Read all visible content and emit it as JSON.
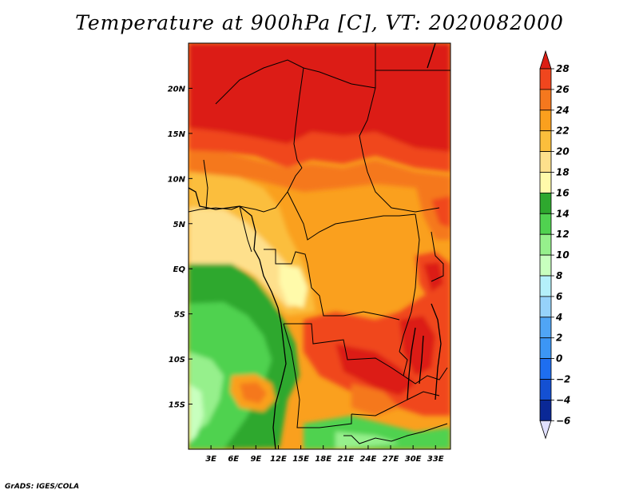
{
  "title": "Temperature at 900hPa [C], VT: 2020082000",
  "credit": "GrADS: IGES/COLA",
  "map": {
    "lon_range": [
      0,
      35
    ],
    "lat_range": [
      -20,
      25
    ],
    "x_ticks": [
      "3E",
      "6E",
      "9E",
      "12E",
      "15E",
      "18E",
      "21E",
      "24E",
      "27E",
      "30E",
      "33E"
    ],
    "y_ticks": [
      "20N",
      "15N",
      "10N",
      "5N",
      "EQ",
      "5S",
      "10S",
      "15S"
    ],
    "x_tick_values": [
      3,
      6,
      9,
      12,
      15,
      18,
      21,
      24,
      27,
      30,
      33
    ],
    "y_tick_values": [
      20,
      15,
      10,
      5,
      0,
      -5,
      -10,
      -15
    ]
  },
  "colorbar": {
    "labels": [
      "28",
      "26",
      "24",
      "22",
      "20",
      "18",
      "16",
      "14",
      "12",
      "10",
      "8",
      "6",
      "4",
      "2",
      "0",
      "−2",
      "−4",
      "−6"
    ],
    "levels": [
      28,
      26,
      24,
      22,
      20,
      18,
      16,
      14,
      12,
      10,
      8,
      6,
      4,
      2,
      0,
      -2,
      -4,
      -6
    ],
    "colors": [
      "#dc1e14",
      "#f0461e",
      "#f5781e",
      "#faa01e",
      "#fbbe3c",
      "#fee08c",
      "#fffaaa",
      "#2ea82e",
      "#50d250",
      "#96f08c",
      "#c8ffbe",
      "#b4f0fa",
      "#96d2fa",
      "#50a5f5",
      "#3c96f5",
      "#1e6ef0",
      "#1450d2",
      "#0a2896",
      "#000064",
      "#e0e0ff"
    ]
  }
}
